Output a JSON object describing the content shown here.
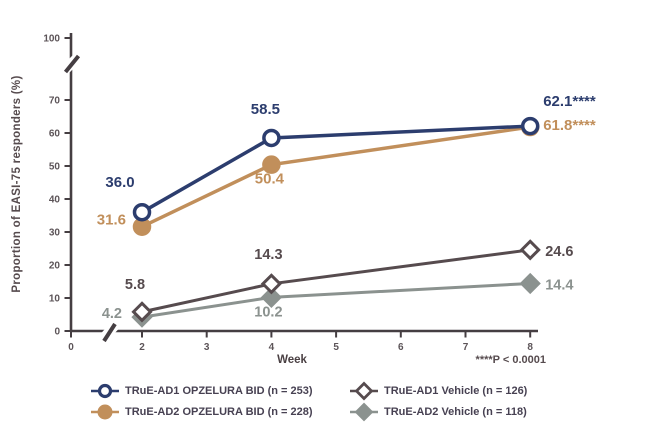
{
  "chart_data": {
    "type": "line",
    "title": "",
    "xlabel": "Week",
    "ylabel": "Proportion of EASI-75 responders (%)",
    "footnote": "****P < 0.0001",
    "x": [
      2,
      4,
      8
    ],
    "x_ticks": [
      0,
      2,
      3,
      4,
      5,
      6,
      7,
      8
    ],
    "y_ticks": [
      0,
      10,
      20,
      30,
      40,
      50,
      60,
      70,
      100
    ],
    "ylim": [
      0,
      100
    ],
    "axis_breaks": {
      "x_axis": "between week 0 and week 2",
      "y_axis": "between 70 and 100"
    },
    "grid": false,
    "legend_position": "bottom",
    "series": [
      {
        "name": "TRuE-AD1 OPZELURA BID (n = 253)",
        "marker": "open-circle",
        "color": "#2c3d6e",
        "values": [
          36.0,
          58.5,
          62.1
        ],
        "point_labels": [
          "36.0",
          "58.5",
          "62.1****"
        ]
      },
      {
        "name": "TRuE-AD2 OPZELURA BID (n = 228)",
        "marker": "filled-circle",
        "color": "#c18f5b",
        "values": [
          31.6,
          50.4,
          61.8
        ],
        "point_labels": [
          "31.6",
          "50.4",
          "61.8****"
        ]
      },
      {
        "name": "TRuE-AD1 Vehicle (n = 126)",
        "marker": "open-diamond",
        "color": "#564b4e",
        "values": [
          5.8,
          14.3,
          24.6
        ],
        "point_labels": [
          "5.8",
          "14.3",
          "24.6"
        ]
      },
      {
        "name": "TRuE-AD2 Vehicle (n = 118)",
        "marker": "filled-diamond",
        "color": "#8b928f",
        "values": [
          4.2,
          10.2,
          14.4
        ],
        "point_labels": [
          "4.2",
          "10.2",
          "14.4"
        ]
      }
    ],
    "axis_color": "#453e42",
    "tick_label_color": "#5c5458",
    "background_color": "#ffffff"
  }
}
